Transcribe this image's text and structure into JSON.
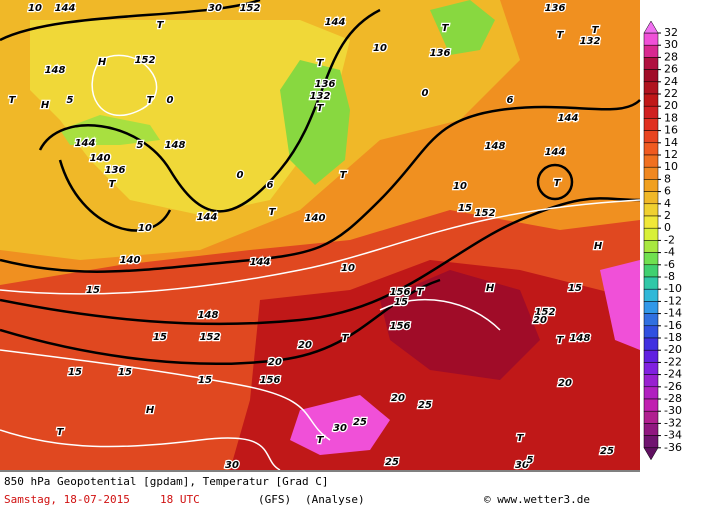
{
  "map": {
    "labels": [
      "144",
      "144",
      "144",
      "144",
      "144",
      "144",
      "144",
      "140",
      "140",
      "140",
      "148",
      "148",
      "148",
      "148",
      "148",
      "152",
      "152",
      "152",
      "152",
      "152",
      "156",
      "156",
      "156",
      "136",
      "136",
      "136",
      "136",
      "132",
      "132",
      "10",
      "10",
      "10",
      "10",
      "10",
      "15",
      "15",
      "15",
      "15",
      "15",
      "15",
      "15",
      "15",
      "20",
      "20",
      "20",
      "20",
      "20",
      "25",
      "25",
      "25",
      "25",
      "30",
      "30",
      "30",
      "30",
      "T",
      "T",
      "T",
      "T",
      "T",
      "T",
      "T",
      "T",
      "T",
      "T",
      "T",
      "T",
      "T",
      "T",
      "T",
      "T",
      "T",
      "T",
      "H",
      "H",
      "H",
      "H",
      "H",
      "5",
      "0",
      "5",
      "0",
      "6",
      "0",
      "6",
      "5"
    ]
  },
  "legend": {
    "ticks": [
      32,
      30,
      28,
      26,
      24,
      22,
      20,
      18,
      16,
      14,
      12,
      10,
      8,
      6,
      4,
      2,
      0,
      -2,
      -4,
      -6,
      -8,
      -10,
      -12,
      -14,
      -16,
      -18,
      -20,
      -22,
      -24,
      -26,
      -28,
      -30,
      -32,
      -34,
      -36
    ],
    "colors": [
      "#f050d8",
      "#d82890",
      "#b01040",
      "#a00c28",
      "#b01420",
      "#c01818",
      "#d02020",
      "#e03020",
      "#e84420",
      "#f05a20",
      "#f07020",
      "#f08820",
      "#f0a020",
      "#f0b828",
      "#f0d030",
      "#f0e838",
      "#d8f038",
      "#a8e840",
      "#70e050",
      "#40d070",
      "#30c8a8",
      "#30b8d8",
      "#3098e8",
      "#3070e0",
      "#3050e0",
      "#4030e0",
      "#6020e0",
      "#8020e0",
      "#9820d0",
      "#b020c0",
      "#c020b0",
      "#b02090",
      "#901880",
      "#701470"
    ],
    "over_color": "#f070f0",
    "under_color": "#601060"
  },
  "footer": {
    "title": "850 hPa Geopotential [gpdam], Temperatur [Grad C]",
    "date": "Samstag, 18-07-2015",
    "time": "18 UTC",
    "model": "(GFS)",
    "run": "(Analyse)",
    "source": "© www.wetter3.de"
  }
}
